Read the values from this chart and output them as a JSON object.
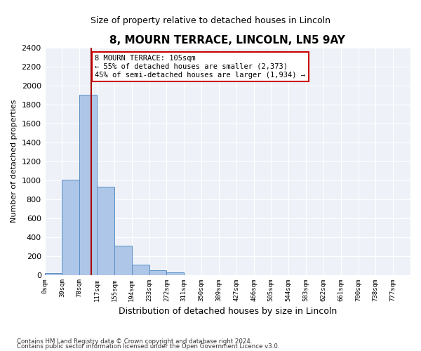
{
  "title": "8, MOURN TERRACE, LINCOLN, LN5 9AY",
  "subtitle": "Size of property relative to detached houses in Lincoln",
  "xlabel": "Distribution of detached houses by size in Lincoln",
  "ylabel": "Number of detached properties",
  "bin_labels": [
    "0sqm",
    "39sqm",
    "78sqm",
    "117sqm",
    "155sqm",
    "194sqm",
    "233sqm",
    "272sqm",
    "311sqm",
    "350sqm",
    "389sqm",
    "427sqm",
    "466sqm",
    "505sqm",
    "544sqm",
    "583sqm",
    "622sqm",
    "661sqm",
    "700sqm",
    "738sqm",
    "777sqm"
  ],
  "bin_values": [
    20,
    1005,
    1900,
    930,
    310,
    105,
    45,
    30,
    0,
    0,
    0,
    0,
    0,
    0,
    0,
    0,
    0,
    0,
    0,
    0,
    0
  ],
  "bar_color": "#aec6e8",
  "bar_edge_color": "#5a8fc4",
  "property_label": "8 MOURN TERRACE: 105sqm",
  "pct_smaller": 55,
  "count_smaller": 2373,
  "pct_larger": 45,
  "count_larger": 1934,
  "vline_color": "#aa0000",
  "vline_x": 2.69,
  "ylim": [
    0,
    2400
  ],
  "yticks": [
    0,
    200,
    400,
    600,
    800,
    1000,
    1200,
    1400,
    1600,
    1800,
    2000,
    2200,
    2400
  ],
  "annotation_box_color": "#cc0000",
  "footer_line1": "Contains HM Land Registry data © Crown copyright and database right 2024.",
  "footer_line2": "Contains public sector information licensed under the Open Government Licence v3.0.",
  "background_color": "#eef2f8"
}
